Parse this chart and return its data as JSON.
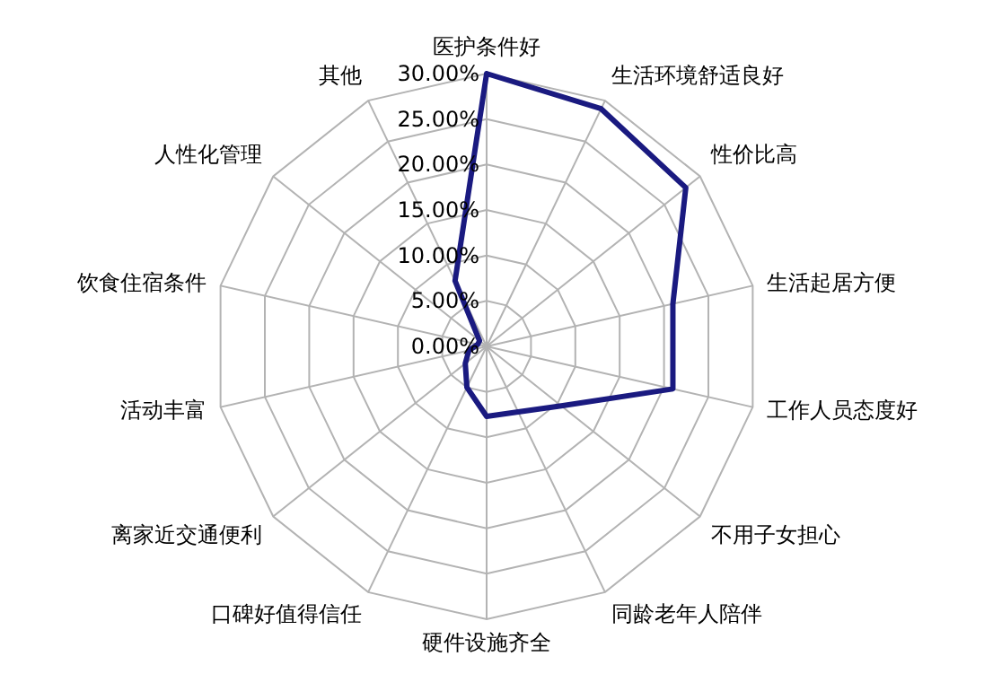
{
  "chart_data": {
    "type": "radar",
    "categories": [
      "医护条件好",
      "生活环境舒适良好",
      "性价比高",
      "生活起居方便",
      "工作人员态度好",
      "不用子女担心",
      "同龄老年人陪伴",
      "硬件设施齐全",
      "口碑好值得信任",
      "离家近交通便利",
      "活动丰富",
      "饮食住宿条件",
      "人性化管理",
      "其他"
    ],
    "series": [
      {
        "color": "#1a1a80",
        "values": [
          30,
          29,
          28,
          21,
          21,
          10.5,
          8,
          7.7,
          5,
          3,
          2,
          1,
          1,
          8
        ]
      }
    ],
    "ylim": [
      0,
      30
    ],
    "yticks": [
      {
        "value": 0,
        "label": "0.00%"
      },
      {
        "value": 5,
        "label": "5.00%"
      },
      {
        "value": 10,
        "label": "10.00%"
      },
      {
        "value": 15,
        "label": "15.00%"
      },
      {
        "value": 20,
        "label": "20.00%"
      },
      {
        "value": 25,
        "label": "25.00%"
      },
      {
        "value": 30,
        "label": "30.00%"
      }
    ],
    "grid": true,
    "line_style": "solid"
  }
}
